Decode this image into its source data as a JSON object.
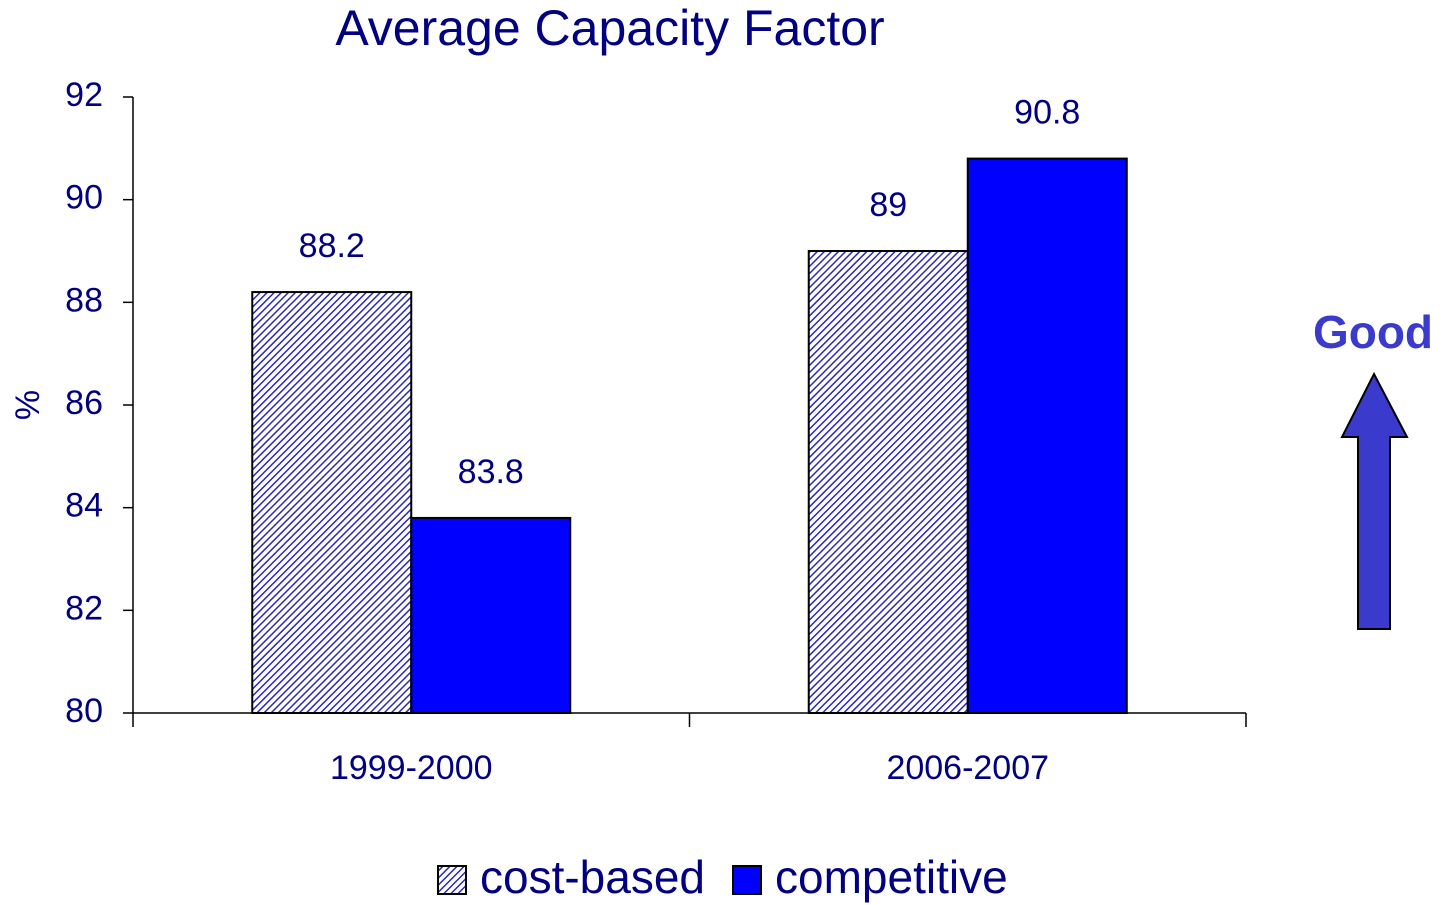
{
  "chart_data": {
    "type": "bar",
    "title": "Average Capacity Factor",
    "y_label": "%",
    "categories": [
      "1999-2000",
      "2006-2007"
    ],
    "series": [
      {
        "name": "cost-based",
        "color": "#2a2ab8",
        "pattern": "hatch",
        "values": [
          88.2,
          89
        ]
      },
      {
        "name": "competitive",
        "color": "#0000ff",
        "values": [
          83.8,
          90.8
        ]
      }
    ],
    "ylim": [
      80,
      92
    ],
    "yticks": [
      80,
      82,
      84,
      86,
      88,
      90,
      92
    ],
    "legend": "bottom",
    "annotation": "Good"
  }
}
